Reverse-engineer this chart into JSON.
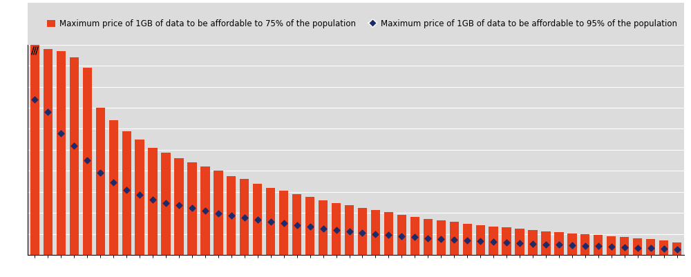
{
  "bar_75": [
    1000,
    980,
    970,
    940,
    890,
    700,
    640,
    590,
    550,
    510,
    485,
    460,
    440,
    420,
    400,
    375,
    360,
    340,
    320,
    305,
    290,
    275,
    260,
    248,
    236,
    224,
    213,
    202,
    192,
    182,
    172,
    164,
    156,
    149,
    142,
    135,
    130,
    124,
    119,
    113,
    108,
    103,
    99,
    94,
    89,
    84,
    79,
    74,
    69,
    60
  ],
  "dot_95": [
    740,
    680,
    580,
    520,
    450,
    390,
    345,
    310,
    285,
    262,
    248,
    235,
    222,
    210,
    198,
    187,
    178,
    168,
    158,
    150,
    142,
    134,
    126,
    119,
    112,
    106,
    100,
    95,
    90,
    85,
    80,
    76,
    72,
    68,
    65,
    62,
    59,
    56,
    53,
    50,
    48,
    45,
    43,
    41,
    38,
    36,
    34,
    32,
    29,
    25
  ],
  "bar_color": "#E8401C",
  "dot_color": "#1B2A6B",
  "bg_color": "#DCDCDC",
  "ylim_display": 1000,
  "n_bars": 50,
  "legend_75": "Maximum price of 1GB of data to be affordable to 75% of the population",
  "legend_95": "Maximum price of 1GB of data to be affordable to 95% of the population",
  "break_threshold": 950,
  "grid_color": "#FFFFFF",
  "legend_bg": "#DCDCDC",
  "ytick_count": 10
}
